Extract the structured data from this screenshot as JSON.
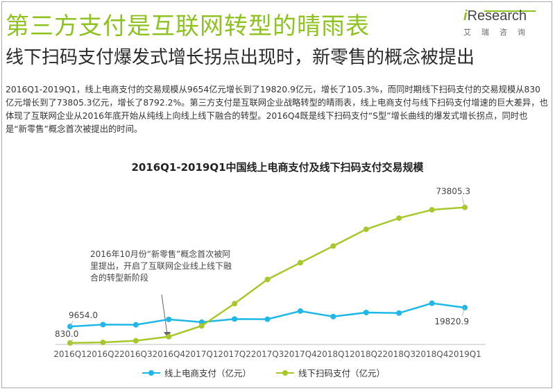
{
  "header": {
    "title": "第三方支付是互联网转型的晴雨表",
    "subtitle": "线下扫码支付爆发式增长拐点出现时，新零售的概念被提出"
  },
  "logo": {
    "brand_i": "i",
    "brand_rest": "Research",
    "sub": "艾瑞咨询"
  },
  "description": "2016Q1-2019Q1，线上电商支付的交易规模从9654亿元增长到了19820.9亿元，增长了105.3%，而同时期线下扫码支付的交易规模从830亿元增长到了73805.3亿元，增长了8792.2%。第三方支付是互联网企业战略转型的晴雨表，线上电商支付与线下扫码支付增速的巨大差异，也体现了互联网企业从2016年底开始从纯线上向线上线下融合的转型。2016Q4既是线下扫码支付“S型”增长曲线的爆发式增长拐点，同时也是“新零售”概念首次被提出的时间。",
  "annotation": "2016年10月份“新零售”概念首次被阿里提出，开启了互联网企业线上线下融合的转型新阶段",
  "colors": {
    "accent": "#8dc21f",
    "online": "#1fb7e8",
    "offline": "#a7c82c"
  },
  "chart_data": {
    "type": "line",
    "title": "2016Q1-2019Q1中国线上电商支付及线下扫码支付交易规模",
    "categories": [
      "2016Q1",
      "2016Q2",
      "2016Q3",
      "2016Q4",
      "2017Q1",
      "2017Q2",
      "2017Q3",
      "2017Q4",
      "2018Q1",
      "2018Q2",
      "2018Q3",
      "2018Q4",
      "2019Q1"
    ],
    "series": [
      {
        "name": "线上电商支付（亿元）",
        "values": [
          9654.0,
          10700,
          10600,
          13500,
          12000,
          13700,
          13600,
          18000,
          15000,
          17200,
          16900,
          22200,
          19820.9
        ]
      },
      {
        "name": "线下扫码支付（亿元）",
        "values": [
          830.0,
          1100,
          2000,
          4200,
          10000,
          22000,
          35000,
          44000,
          53000,
          62000,
          68000,
          72500,
          73805.3
        ]
      }
    ],
    "data_labels": [
      "9654.0",
      "19820.9",
      "830.0",
      "73805.3"
    ],
    "ylim": [
      0,
      80000
    ],
    "grid": false,
    "legend": "bottom"
  }
}
